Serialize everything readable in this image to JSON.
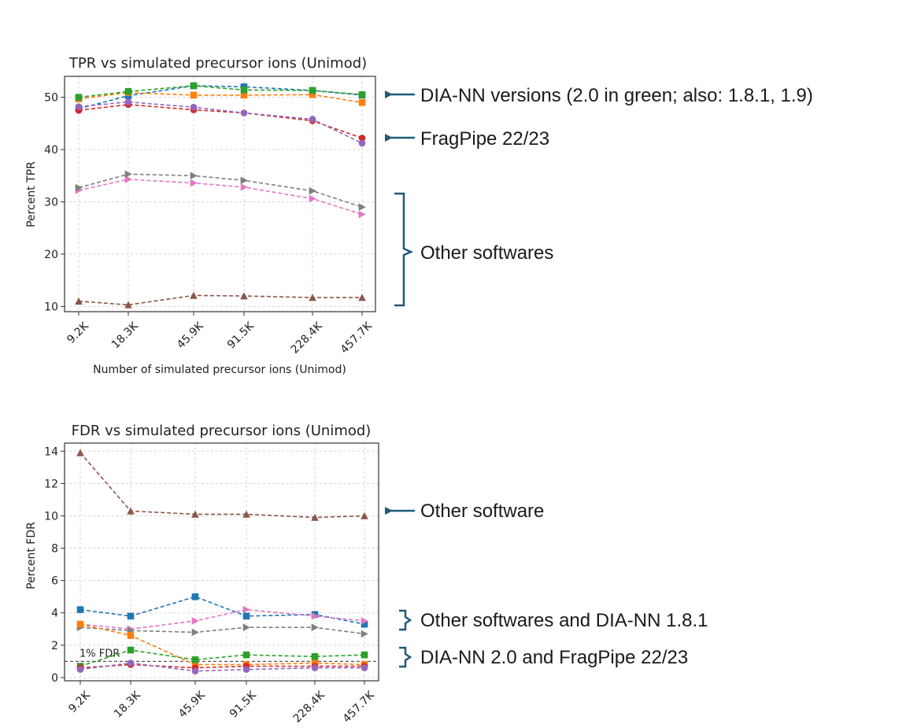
{
  "colors": {
    "annotation": "#1f5a78",
    "threshold": "#555555",
    "grid": "#d4d4d4"
  },
  "chart_data": [
    {
      "id": "tpr",
      "type": "line",
      "title": "TPR vs simulated precursor ions (Unimod)",
      "xlabel": "Number of simulated precursor ions (Unimod)",
      "ylabel": "Percent TPR",
      "categories": [
        "9.2K",
        "18.3K",
        "45.9K",
        "91.5K",
        "228.4K",
        "457.7K"
      ],
      "x": [
        9.2,
        18.3,
        45.9,
        91.5,
        228.4,
        457.7
      ],
      "ylim": [
        9,
        54
      ],
      "yticks": [
        10,
        20,
        30,
        40,
        50
      ],
      "grid": true,
      "series": [
        {
          "name": "blue",
          "color": "#1f77b4",
          "marker": "square",
          "values": [
            47.8,
            50.3,
            52.2,
            52.0,
            51.3,
            50.4
          ]
        },
        {
          "name": "orange",
          "color": "#ff7f0e",
          "marker": "square",
          "values": [
            49.7,
            50.9,
            50.4,
            50.4,
            50.5,
            49.0
          ]
        },
        {
          "name": "green",
          "color": "#2ca02c",
          "marker": "square",
          "values": [
            50.0,
            51.1,
            52.2,
            51.4,
            51.3,
            50.5
          ]
        },
        {
          "name": "red",
          "color": "#d62728",
          "marker": "circle",
          "values": [
            47.5,
            48.6,
            47.6,
            47.0,
            45.5,
            42.2
          ]
        },
        {
          "name": "purple",
          "color": "#9467bd",
          "marker": "circle",
          "values": [
            48.2,
            49.1,
            48.1,
            47.0,
            45.8,
            41.2
          ]
        },
        {
          "name": "brown",
          "color": "#8c564b",
          "marker": "triangle-up",
          "values": [
            11.0,
            10.3,
            12.1,
            12.0,
            11.7,
            11.7
          ]
        },
        {
          "name": "pink",
          "color": "#e377c2",
          "marker": "triangle-right",
          "values": [
            32.2,
            34.3,
            33.6,
            32.8,
            30.6,
            27.6
          ]
        },
        {
          "name": "gray",
          "color": "#7f7f7f",
          "marker": "triangle-right",
          "values": [
            32.7,
            35.3,
            35.0,
            34.1,
            32.1,
            29.0
          ]
        }
      ]
    },
    {
      "id": "fdr",
      "type": "line",
      "title": "FDR vs simulated precursor ions (Unimod)",
      "xlabel": "",
      "ylabel": "Percent FDR",
      "categories": [
        "9.2K",
        "18.3K",
        "45.9K",
        "91.5K",
        "228.4K",
        "457.7K"
      ],
      "x": [
        9.2,
        18.3,
        45.9,
        91.5,
        228.4,
        457.7
      ],
      "ylim": [
        -0.2,
        14.5
      ],
      "yticks": [
        0,
        2,
        4,
        6,
        8,
        10,
        12,
        14
      ],
      "grid": true,
      "threshold": {
        "value": 1.0,
        "label": "1% FDR"
      },
      "series": [
        {
          "name": "brown",
          "color": "#8c564b",
          "marker": "triangle-up",
          "values": [
            13.9,
            10.3,
            10.1,
            10.1,
            9.9,
            10.0
          ]
        },
        {
          "name": "blue",
          "color": "#1f77b4",
          "marker": "square",
          "values": [
            4.2,
            3.8,
            5.0,
            3.8,
            3.9,
            3.3
          ]
        },
        {
          "name": "pink",
          "color": "#e377c2",
          "marker": "triangle-right",
          "values": [
            3.3,
            3.0,
            3.5,
            4.2,
            3.8,
            3.5
          ]
        },
        {
          "name": "gray",
          "color": "#7f7f7f",
          "marker": "triangle-right",
          "values": [
            3.1,
            2.9,
            2.8,
            3.1,
            3.1,
            2.7
          ]
        },
        {
          "name": "orange",
          "color": "#ff7f0e",
          "marker": "square",
          "values": [
            3.3,
            2.6,
            0.8,
            0.8,
            0.9,
            0.8
          ]
        },
        {
          "name": "green",
          "color": "#2ca02c",
          "marker": "square",
          "values": [
            0.7,
            1.7,
            1.1,
            1.4,
            1.3,
            1.4
          ]
        },
        {
          "name": "red",
          "color": "#d62728",
          "marker": "circle",
          "values": [
            0.6,
            0.8,
            0.6,
            0.7,
            0.7,
            0.7
          ]
        },
        {
          "name": "purple",
          "color": "#9467bd",
          "marker": "circle",
          "values": [
            0.5,
            0.9,
            0.4,
            0.5,
            0.6,
            0.6
          ]
        }
      ]
    }
  ],
  "annotations": {
    "tpr_dia_nn": "DIA-NN versions (2.0 in green; also: 1.8.1, 1.9)",
    "tpr_fragpipe": "FragPipe 22/23",
    "tpr_other": "Other softwares",
    "fdr_other": "Other software",
    "fdr_other_dia": "Other softwares and DIA-NN 1.8.1",
    "fdr_dia_frag": "DIA-NN 2.0 and FragPipe 22/23"
  }
}
